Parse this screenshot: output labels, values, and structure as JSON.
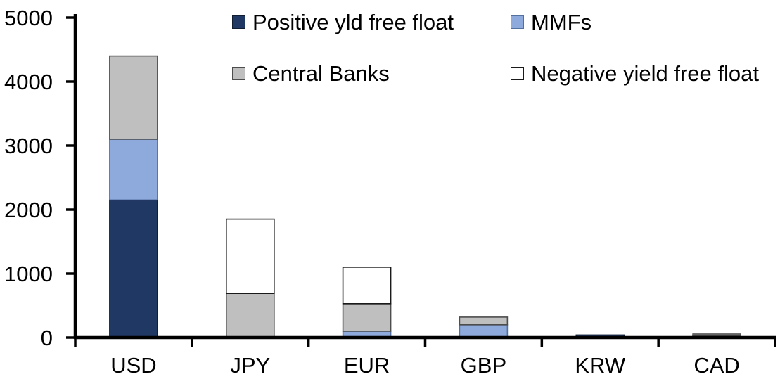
{
  "chart_data": {
    "type": "bar",
    "stacked": true,
    "title": "",
    "xlabel": "",
    "ylabel": "",
    "grid": false,
    "legend_position": "top",
    "categories": [
      "USD",
      "JPY",
      "EUR",
      "GBP",
      "KRW",
      "CAD"
    ],
    "series": [
      {
        "name": "Positive yld free float",
        "color": "#1F3864",
        "border": "#101C30",
        "values": [
          2150,
          0,
          0,
          0,
          40,
          30
        ]
      },
      {
        "name": "MMFs",
        "color": "#8EA9DB",
        "border": "#54709F",
        "values": [
          950,
          0,
          100,
          200,
          0,
          0
        ]
      },
      {
        "name": "Central Banks",
        "color": "#BFBFBF",
        "border": "#4D4D4D",
        "values": [
          1300,
          690,
          430,
          120,
          0,
          25
        ]
      },
      {
        "name": "Negative yield free float",
        "color": "#FFFFFF",
        "border": "#1A1A1A",
        "values": [
          0,
          1160,
          570,
          0,
          0,
          0
        ]
      }
    ],
    "stack_totals": [
      4400,
      1850,
      1100,
      320,
      40,
      55
    ],
    "ylim": [
      0,
      5000
    ],
    "ytick_interval": 1000,
    "yticks": [
      0,
      1000,
      2000,
      3000,
      4000,
      5000
    ],
    "axis_color": "#000000",
    "tick_label_color": "#000000"
  }
}
